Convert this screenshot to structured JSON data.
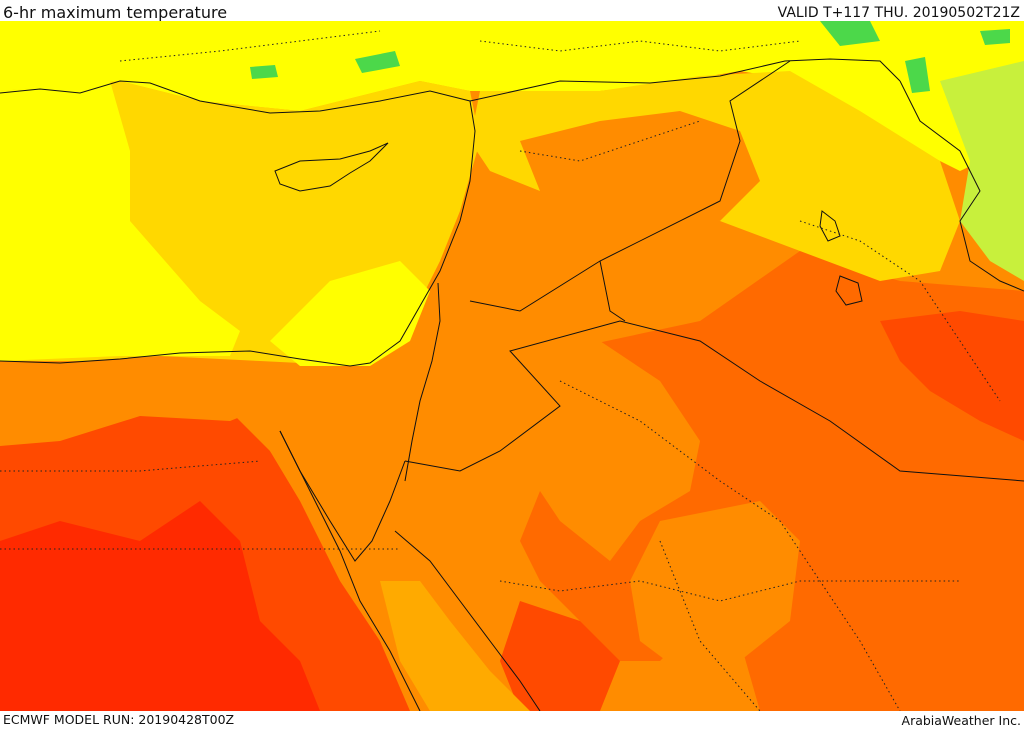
{
  "header": {
    "title": "6-hr maximum temperature",
    "valid_time": "VALID T+117 THU. 20190502T21Z"
  },
  "footer": {
    "model_run": "ECMWF MODEL RUN: 20190428T00Z",
    "credit": "ArabiaWeather Inc."
  },
  "map": {
    "field": "6-hr maximum temperature",
    "colors": {
      "green": "#4cd84a",
      "yellow_green": "#c8f03c",
      "yellow": "#ffff00",
      "gold": "#ffd800",
      "orange_light": "#ffaa00",
      "orange": "#ff8c00",
      "orange_dark": "#ff6a00",
      "red_orange": "#ff4a00",
      "red": "#ff2a00",
      "border": "#111111"
    }
  }
}
